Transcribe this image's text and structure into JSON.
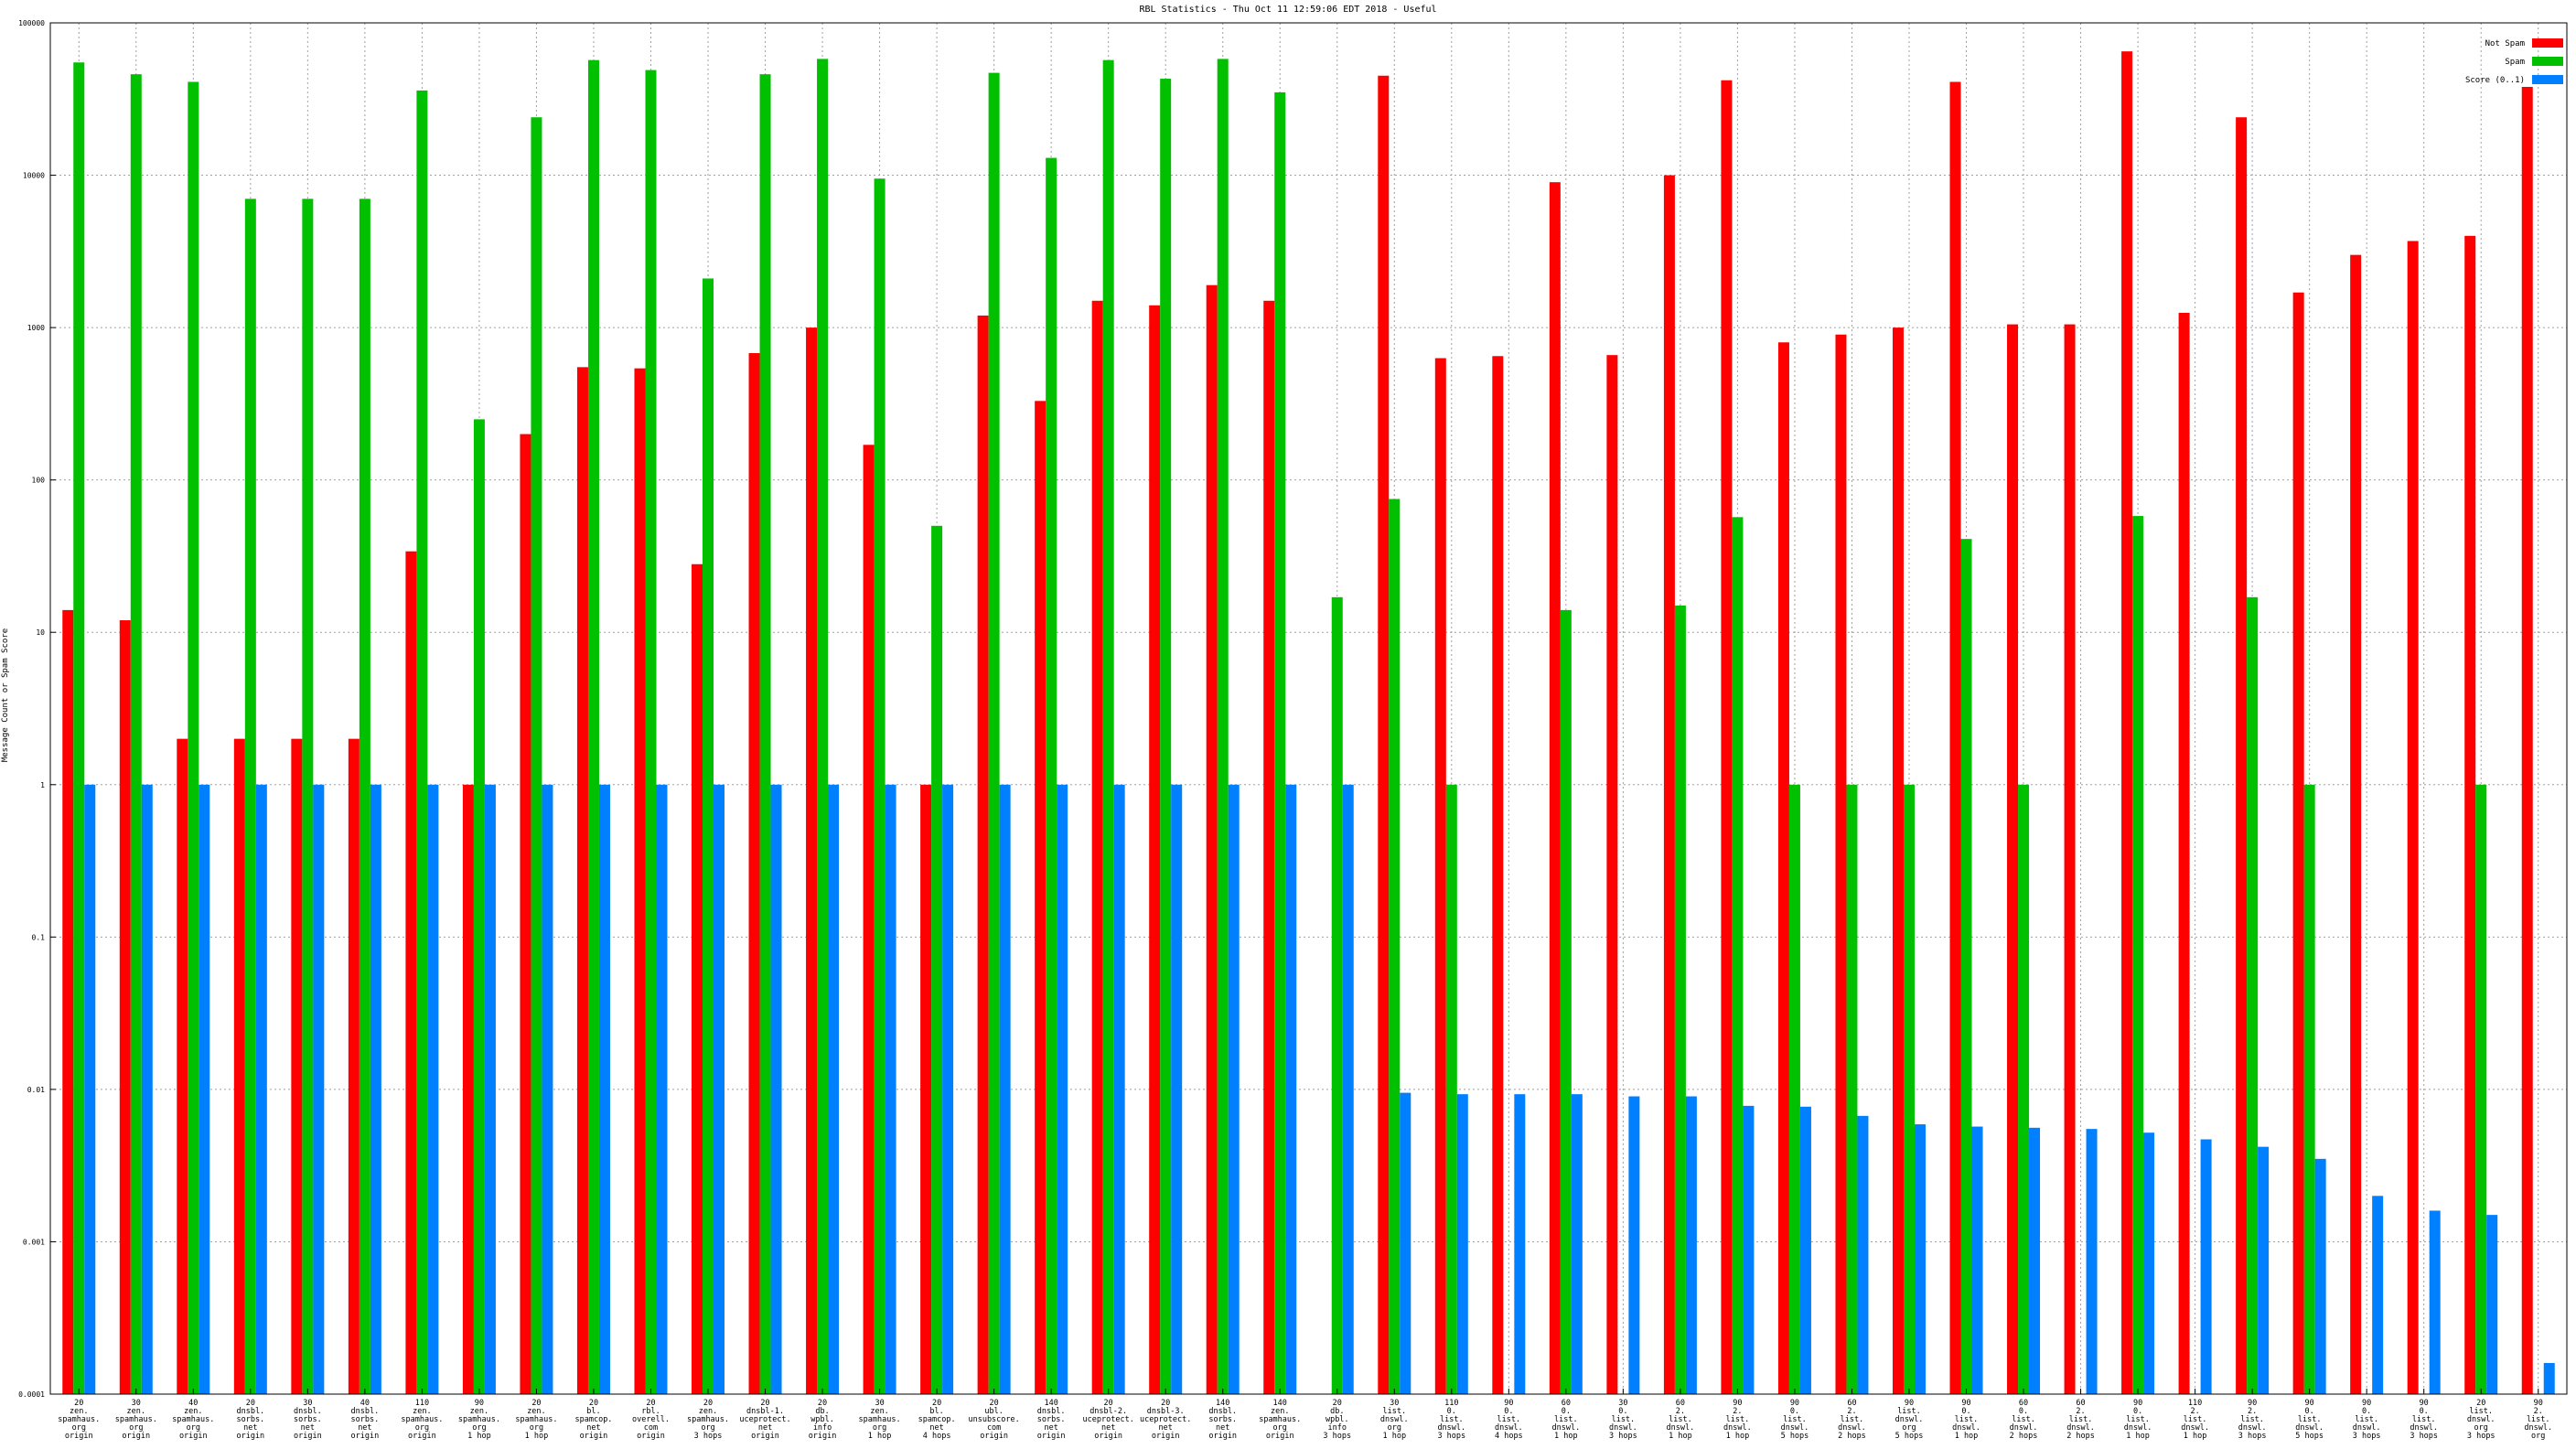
{
  "chart_data": {
    "type": "bar",
    "title": "RBL Statistics - Thu Oct 11 12:59:06 EDT 2018 - Useful",
    "ylabel": "Message Count or Spam Score",
    "xlabel": "",
    "scale": "log",
    "ylim": [
      0.0001,
      100000
    ],
    "yticks": [
      {
        "value": 0.0001,
        "label": "0.0001"
      },
      {
        "value": 0.001,
        "label": "0.001"
      },
      {
        "value": 0.01,
        "label": "0.01"
      },
      {
        "value": 0.1,
        "label": "0.1"
      },
      {
        "value": 1,
        "label": "1"
      },
      {
        "value": 10,
        "label": "10"
      },
      {
        "value": 100,
        "label": "100"
      },
      {
        "value": 1000,
        "label": "1000"
      },
      {
        "value": 10000,
        "label": "10000"
      },
      {
        "value": 100000,
        "label": "100000"
      }
    ],
    "grid": true,
    "legend_position": "top-right",
    "categories": [
      [
        "20",
        "zen.",
        "spamhaus.",
        "org",
        "origin"
      ],
      [
        "30",
        "zen.",
        "spamhaus.",
        "org",
        "origin"
      ],
      [
        "40",
        "zen.",
        "spamhaus.",
        "org",
        "origin"
      ],
      [
        "20",
        "dnsbl.",
        "sorbs.",
        "net",
        "origin"
      ],
      [
        "30",
        "dnsbl.",
        "sorbs.",
        "net",
        "origin"
      ],
      [
        "40",
        "dnsbl.",
        "sorbs.",
        "net",
        "origin"
      ],
      [
        "110",
        "zen.",
        "spamhaus.",
        "org",
        "origin"
      ],
      [
        "90",
        "zen.",
        "spamhaus.",
        "org",
        "1 hop"
      ],
      [
        "20",
        "zen.",
        "spamhaus.",
        "org",
        "1 hop"
      ],
      [
        "20",
        "bl.",
        "spamcop.",
        "net",
        "origin"
      ],
      [
        "20",
        "rbl.",
        "overell.",
        "com",
        "origin"
      ],
      [
        "20",
        "zen.",
        "spamhaus.",
        "org",
        "3 hops"
      ],
      [
        "20",
        "dnsbl-1.",
        "uceprotect.",
        "net",
        "origin"
      ],
      [
        "20",
        "db.",
        "wpbl.",
        "info",
        "origin"
      ],
      [
        "30",
        "zen.",
        "spamhaus.",
        "org",
        "1 hop"
      ],
      [
        "20",
        "bl.",
        "spamcop.",
        "net",
        "4 hops"
      ],
      [
        "20",
        "ubl.",
        "unsubscore.",
        "com",
        "origin"
      ],
      [
        "140",
        "dnsbl.",
        "sorbs.",
        "net",
        "origin"
      ],
      [
        "20",
        "dnsbl-2.",
        "uceprotect.",
        "net",
        "origin"
      ],
      [
        "20",
        "dnsbl-3.",
        "uceprotect.",
        "net",
        "origin"
      ],
      [
        "140",
        "dnsbl.",
        "sorbs.",
        "net",
        "origin"
      ],
      [
        "140",
        "zen.",
        "spamhaus.",
        "org",
        "origin"
      ],
      [
        "20",
        "db.",
        "wpbl.",
        "info",
        "3 hops"
      ],
      [
        "30",
        "list.",
        "dnswl.",
        "org",
        "1 hop"
      ],
      [
        "110",
        "0.",
        "list.",
        "dnswl.",
        "3 hops"
      ],
      [
        "90",
        "0.",
        "list.",
        "dnswl.",
        "4 hops"
      ],
      [
        "60",
        "0.",
        "list.",
        "dnswl.",
        "1 hop"
      ],
      [
        "30",
        "0.",
        "list.",
        "dnswl.",
        "3 hops"
      ],
      [
        "60",
        "2.",
        "list.",
        "dnswl.",
        "1 hop"
      ],
      [
        "90",
        "2.",
        "list.",
        "dnswl.",
        "1 hop"
      ],
      [
        "90",
        "0.",
        "list.",
        "dnswl.",
        "5 hops"
      ],
      [
        "60",
        "2.",
        "list.",
        "dnswl.",
        "2 hops"
      ],
      [
        "90",
        "list.",
        "dnswl.",
        "org",
        "5 hops"
      ],
      [
        "90",
        "0.",
        "list.",
        "dnswl.",
        "1 hop"
      ],
      [
        "60",
        "0.",
        "list.",
        "dnswl.",
        "2 hops"
      ],
      [
        "60",
        "2.",
        "list.",
        "dnswl.",
        "2 hops"
      ],
      [
        "90",
        "0.",
        "list.",
        "dnswl.",
        "1 hop"
      ],
      [
        "110",
        "2.",
        "list.",
        "dnswl.",
        "1 hop"
      ],
      [
        "90",
        "2.",
        "list.",
        "dnswl.",
        "3 hops"
      ],
      [
        "90",
        "0.",
        "list.",
        "dnswl.",
        "5 hops"
      ],
      [
        "90",
        "0.",
        "list.",
        "dnswl.",
        "3 hops"
      ],
      [
        "90",
        "0.",
        "list.",
        "dnswl.",
        "3 hops"
      ],
      [
        "20",
        "list.",
        "dnswl.",
        "org",
        "3 hops"
      ],
      [
        "90",
        "2.",
        "list.",
        "dnswl.",
        "org"
      ]
    ],
    "series": [
      {
        "name": "Not Spam",
        "color": "#ff0000",
        "values": [
          14,
          12,
          2,
          2,
          2,
          2,
          34,
          1,
          200,
          550,
          540,
          28,
          680,
          1000,
          170,
          1,
          1200,
          330,
          1500,
          1400,
          1900,
          1500,
          null,
          45000,
          630,
          650,
          9000,
          660,
          10000,
          42000,
          800,
          900,
          1000,
          41000,
          1050,
          1050,
          65000,
          1250,
          24000,
          1700,
          3000,
          3700,
          4000,
          38000
        ]
      },
      {
        "name": "Spam",
        "color": "#00c000",
        "values": [
          55000,
          46000,
          41000,
          7000,
          7000,
          7000,
          36000,
          250,
          24000,
          57000,
          49000,
          2100,
          46000,
          58000,
          9500,
          50,
          47000,
          13000,
          57000,
          43000,
          58000,
          35000,
          17,
          75,
          1,
          null,
          14,
          null,
          15,
          57,
          1,
          1,
          1,
          41,
          1,
          null,
          58,
          null,
          17,
          1,
          null,
          null,
          1,
          null
        ]
      },
      {
        "name": "Score (0..1)",
        "color": "#0080ff",
        "values": [
          1,
          1,
          1,
          1,
          1,
          1,
          1,
          1,
          1,
          1,
          1,
          1,
          1,
          1,
          1,
          1,
          1,
          1,
          1,
          1,
          1,
          1,
          1,
          0.0095,
          0.0093,
          0.0093,
          0.0093,
          0.009,
          0.009,
          0.0078,
          0.0077,
          0.0067,
          0.0059,
          0.0057,
          0.0056,
          0.0055,
          0.0052,
          0.0047,
          0.0042,
          0.0035,
          0.002,
          0.0016,
          0.0015,
          0.00016
        ]
      }
    ]
  }
}
